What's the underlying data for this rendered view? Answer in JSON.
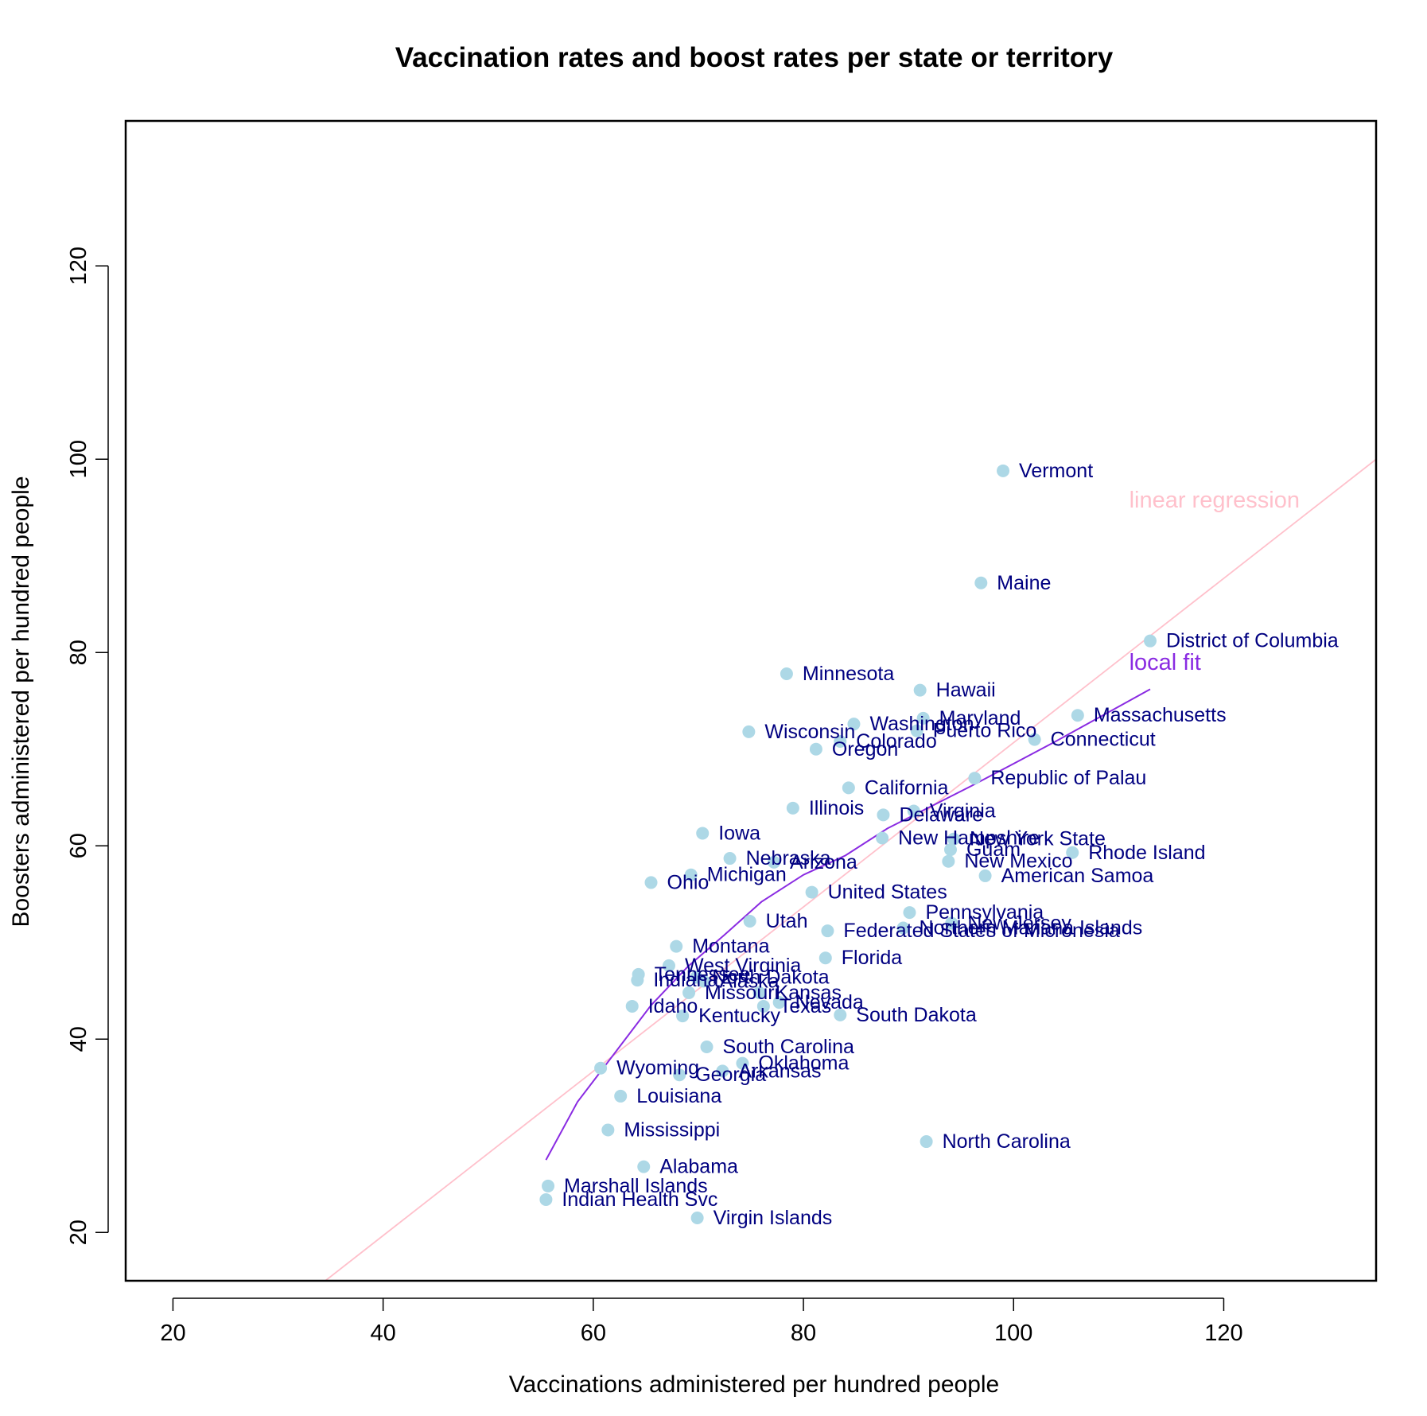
{
  "chart_data": {
    "type": "scatter",
    "title": "Vaccination rates and boost rates per state or territory",
    "xlabel": "Vaccinations administered per hundred people",
    "ylabel": "Boosters administered per hundred people",
    "xlim": [
      15.5,
      134.5
    ],
    "ylim": [
      15,
      135
    ],
    "xticks": [
      20,
      40,
      60,
      80,
      100,
      120
    ],
    "yticks": [
      20,
      40,
      60,
      80,
      100,
      120
    ],
    "grid": false,
    "colors": {
      "points": "#add8e6",
      "point_labels": "#000080",
      "linear_regression": "#ffc0cb",
      "local_fit": "#8a2be2",
      "axes": "#000000"
    },
    "points": [
      {
        "label": "Vermont",
        "x": 99.0,
        "y": 98.8
      },
      {
        "label": "Maine",
        "x": 96.9,
        "y": 87.2
      },
      {
        "label": "District of Columbia",
        "x": 113.0,
        "y": 81.2
      },
      {
        "label": "Minnesota",
        "x": 78.4,
        "y": 77.8
      },
      {
        "label": "Hawaii",
        "x": 91.1,
        "y": 76.1
      },
      {
        "label": "Massachusetts",
        "x": 106.1,
        "y": 73.5
      },
      {
        "label": "Maryland",
        "x": 91.4,
        "y": 73.2
      },
      {
        "label": "Washington",
        "x": 84.8,
        "y": 72.6
      },
      {
        "label": "Puerto Rico",
        "x": 90.8,
        "y": 71.9
      },
      {
        "label": "Wisconsin",
        "x": 74.8,
        "y": 71.8
      },
      {
        "label": "Connecticut",
        "x": 102.0,
        "y": 71.0
      },
      {
        "label": "Colorado",
        "x": 83.5,
        "y": 70.8
      },
      {
        "label": "Oregon",
        "x": 81.2,
        "y": 70.0
      },
      {
        "label": "Republic of Palau",
        "x": 96.3,
        "y": 67.0
      },
      {
        "label": "California",
        "x": 84.3,
        "y": 66.0
      },
      {
        "label": "Illinois",
        "x": 79.0,
        "y": 63.9
      },
      {
        "label": "Virginia",
        "x": 90.5,
        "y": 63.6
      },
      {
        "label": "Delaware",
        "x": 87.6,
        "y": 63.2
      },
      {
        "label": "Iowa",
        "x": 70.4,
        "y": 61.3
      },
      {
        "label": "New Hampshire",
        "x": 87.5,
        "y": 60.8
      },
      {
        "label": "New York State",
        "x": 94.3,
        "y": 60.7
      },
      {
        "label": "Guam",
        "x": 94.0,
        "y": 59.6
      },
      {
        "label": "Rhode Island",
        "x": 105.6,
        "y": 59.3
      },
      {
        "label": "Nebraska",
        "x": 73.0,
        "y": 58.7
      },
      {
        "label": "Arizona",
        "x": 77.2,
        "y": 58.3
      },
      {
        "label": "New Mexico",
        "x": 93.8,
        "y": 58.4
      },
      {
        "label": "Michigan",
        "x": 69.3,
        "y": 57.0
      },
      {
        "label": "American Samoa",
        "x": 97.3,
        "y": 56.9
      },
      {
        "label": "Ohio",
        "x": 65.5,
        "y": 56.2
      },
      {
        "label": "United States",
        "x": 80.8,
        "y": 55.2
      },
      {
        "label": "Pennsylvania",
        "x": 90.1,
        "y": 53.1
      },
      {
        "label": "Utah",
        "x": 74.9,
        "y": 52.2
      },
      {
        "label": "New Jersey",
        "x": 94.1,
        "y": 52.0
      },
      {
        "label": "Northern Mariana Islands",
        "x": 89.5,
        "y": 51.5
      },
      {
        "label": "Federated States of Micronesia",
        "x": 82.3,
        "y": 51.2
      },
      {
        "label": "Montana",
        "x": 67.9,
        "y": 49.6
      },
      {
        "label": "Florida",
        "x": 82.1,
        "y": 48.4
      },
      {
        "label": "West Virginia",
        "x": 67.2,
        "y": 47.6
      },
      {
        "label": "Tennessee",
        "x": 64.3,
        "y": 46.7
      },
      {
        "label": "North Dakota",
        "x": 69.8,
        "y": 46.4
      },
      {
        "label": "Indiana",
        "x": 64.2,
        "y": 46.1
      },
      {
        "label": "Alaska",
        "x": 70.5,
        "y": 46.0
      },
      {
        "label": "Missouri",
        "x": 69.1,
        "y": 44.8
      },
      {
        "label": "Kansas",
        "x": 75.8,
        "y": 44.8
      },
      {
        "label": "Nevada",
        "x": 77.7,
        "y": 43.8
      },
      {
        "label": "Texas",
        "x": 76.2,
        "y": 43.4
      },
      {
        "label": "Idaho",
        "x": 63.7,
        "y": 43.4
      },
      {
        "label": "Kentucky",
        "x": 68.5,
        "y": 42.4
      },
      {
        "label": "South Dakota",
        "x": 83.5,
        "y": 42.5
      },
      {
        "label": "South Carolina",
        "x": 70.8,
        "y": 39.2
      },
      {
        "label": "Oklahoma",
        "x": 74.2,
        "y": 37.5
      },
      {
        "label": "Wyoming",
        "x": 60.7,
        "y": 37.0
      },
      {
        "label": "Arkansas",
        "x": 72.3,
        "y": 36.7
      },
      {
        "label": "Georgia",
        "x": 68.2,
        "y": 36.3
      },
      {
        "label": "Louisiana",
        "x": 62.6,
        "y": 34.1
      },
      {
        "label": "Mississippi",
        "x": 61.4,
        "y": 30.6
      },
      {
        "label": "North Carolina",
        "x": 91.7,
        "y": 29.4
      },
      {
        "label": "Alabama",
        "x": 64.8,
        "y": 26.8
      },
      {
        "label": "Marshall Islands",
        "x": 55.7,
        "y": 24.8
      },
      {
        "label": "Indian Health Svc",
        "x": 55.5,
        "y": 23.4
      },
      {
        "label": "Virgin Islands",
        "x": 69.9,
        "y": 21.5
      }
    ],
    "lines": [
      {
        "name": "linear regression",
        "label_at": [
          111.0,
          95.0
        ],
        "points": [
          [
            34.5,
            15.0
          ],
          [
            134.5,
            100.0
          ]
        ]
      },
      {
        "name": "local fit",
        "label_at": [
          111.0,
          78.2
        ],
        "points": [
          [
            55.5,
            27.5
          ],
          [
            58.5,
            33.5
          ],
          [
            62.0,
            38.5
          ],
          [
            65.5,
            43.5
          ],
          [
            69.0,
            47.5
          ],
          [
            72.5,
            50.8
          ],
          [
            76.0,
            54.2
          ],
          [
            80.0,
            57.0
          ],
          [
            84.0,
            59.0
          ],
          [
            88.0,
            61.8
          ],
          [
            92.0,
            64.0
          ],
          [
            96.0,
            66.2
          ],
          [
            100.0,
            68.5
          ],
          [
            104.0,
            70.8
          ],
          [
            108.0,
            73.2
          ],
          [
            113.0,
            76.2
          ]
        ]
      }
    ]
  }
}
